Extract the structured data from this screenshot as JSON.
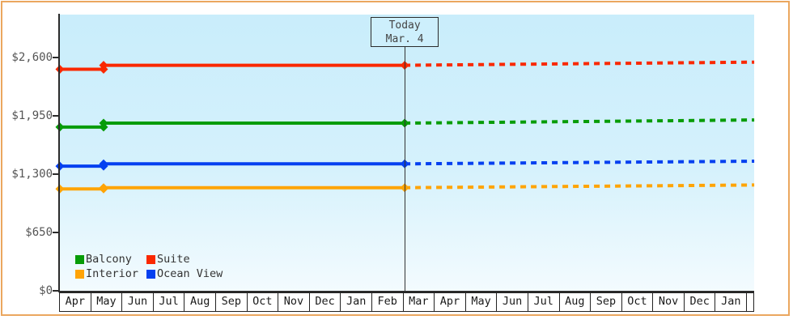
{
  "colors": {
    "frame_border": "#eba75f",
    "plot_bg_top": "#c9edfb",
    "plot_bg_bottom": "#f3fbfe",
    "axis": "#2b2b2b",
    "tick_label": "#555555",
    "today_box_bg": "#cdeffc",
    "today_line": "#333333"
  },
  "chart_data": {
    "type": "line",
    "title": "",
    "y_axis": {
      "ticks": [
        {
          "label": "$0",
          "value": 0
        },
        {
          "label": "$650",
          "value": 650
        },
        {
          "label": "$1,300",
          "value": 1300
        },
        {
          "label": "$1,950",
          "value": 1950
        },
        {
          "label": "$2,600",
          "value": 2600
        }
      ],
      "ylim": [
        0,
        3080
      ],
      "grid": false
    },
    "x_axis": {
      "months": [
        "Apr",
        "May",
        "Jun",
        "Jul",
        "Aug",
        "Sep",
        "Oct",
        "Nov",
        "Dec",
        "Jan",
        "Feb",
        "Mar",
        "Apr",
        "May",
        "Jun",
        "Jul",
        "Aug",
        "Sep",
        "Oct",
        "Nov",
        "Dec",
        "Jan",
        ""
      ]
    },
    "today": {
      "label": "Today",
      "date": "Mar. 4",
      "x_month": 11.04
    },
    "series": [
      {
        "name": "Balcony",
        "color": "#079c07",
        "points_solid": [
          [
            0,
            1825
          ],
          [
            1.4,
            1825
          ],
          [
            1.4,
            1870
          ],
          [
            11.04,
            1870
          ]
        ],
        "points_dashed": [
          [
            11.04,
            1870
          ],
          [
            22.23,
            1905
          ]
        ],
        "markers": [
          [
            0,
            1825
          ],
          [
            1.4,
            1825
          ],
          [
            1.4,
            1870
          ],
          [
            11.04,
            1870
          ]
        ]
      },
      {
        "name": "Suite",
        "color": "#fa2800",
        "points_solid": [
          [
            0,
            2470
          ],
          [
            1.4,
            2470
          ],
          [
            1.4,
            2515
          ],
          [
            11.04,
            2515
          ]
        ],
        "points_dashed": [
          [
            11.04,
            2515
          ],
          [
            22.23,
            2550
          ]
        ],
        "markers": [
          [
            0,
            2470
          ],
          [
            1.4,
            2470
          ],
          [
            1.4,
            2515
          ],
          [
            11.04,
            2515
          ]
        ]
      },
      {
        "name": "Interior",
        "color": "#ffa405",
        "points_solid": [
          [
            0,
            1135
          ],
          [
            1.4,
            1135
          ],
          [
            1.4,
            1150
          ],
          [
            11.04,
            1150
          ]
        ],
        "points_dashed": [
          [
            11.04,
            1150
          ],
          [
            22.23,
            1180
          ]
        ],
        "markers": [
          [
            0,
            1135
          ],
          [
            1.4,
            1135
          ],
          [
            1.4,
            1150
          ],
          [
            11.04,
            1150
          ]
        ]
      },
      {
        "name": "Ocean View",
        "color": "#0540f0",
        "points_solid": [
          [
            0,
            1390
          ],
          [
            1.4,
            1390
          ],
          [
            1.4,
            1415
          ],
          [
            11.04,
            1415
          ]
        ],
        "points_dashed": [
          [
            11.04,
            1415
          ],
          [
            22.23,
            1445
          ]
        ],
        "markers": [
          [
            0,
            1390
          ],
          [
            1.4,
            1390
          ],
          [
            1.4,
            1415
          ],
          [
            11.04,
            1415
          ]
        ]
      }
    ],
    "legend": {
      "position": "bottom-left",
      "items": [
        {
          "label": "Balcony",
          "color": "#079c07"
        },
        {
          "label": "Suite",
          "color": "#fa2800"
        },
        {
          "label": "Interior",
          "color": "#ffa405"
        },
        {
          "label": "Ocean View",
          "color": "#0540f0"
        }
      ]
    }
  }
}
